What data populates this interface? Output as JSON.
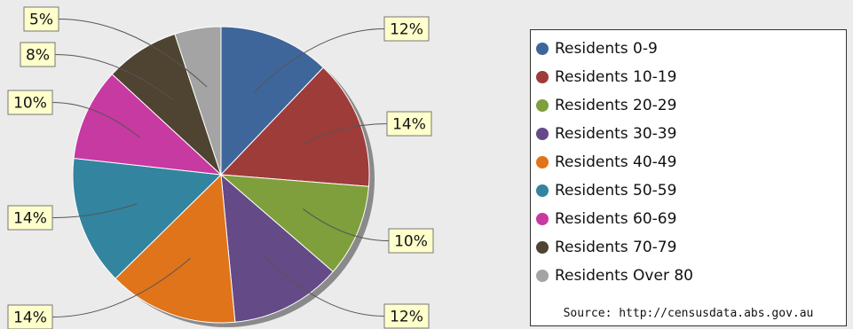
{
  "chart_data": {
    "type": "pie",
    "categories": [
      "Residents 0-9",
      "Residents 10-19",
      "Residents 20-29",
      "Residents 30-39",
      "Residents 40-49",
      "Residents 50-59",
      "Residents 60-69",
      "Residents 70-79",
      "Residents Over 80"
    ],
    "values": [
      12,
      14,
      10,
      12,
      14,
      14,
      10,
      8,
      5
    ],
    "labels": [
      "12%",
      "14%",
      "10%",
      "12%",
      "14%",
      "14%",
      "10%",
      "8%",
      "5%"
    ],
    "colors": [
      "#3f669b",
      "#9e3c3a",
      "#7e9f3b",
      "#644a87",
      "#e0741a",
      "#33849f",
      "#c73aa2",
      "#4f4331",
      "#a4a4a4"
    ],
    "title": "",
    "legend_position": "right",
    "source": "Source: http://censusdata.abs.gov.au"
  }
}
